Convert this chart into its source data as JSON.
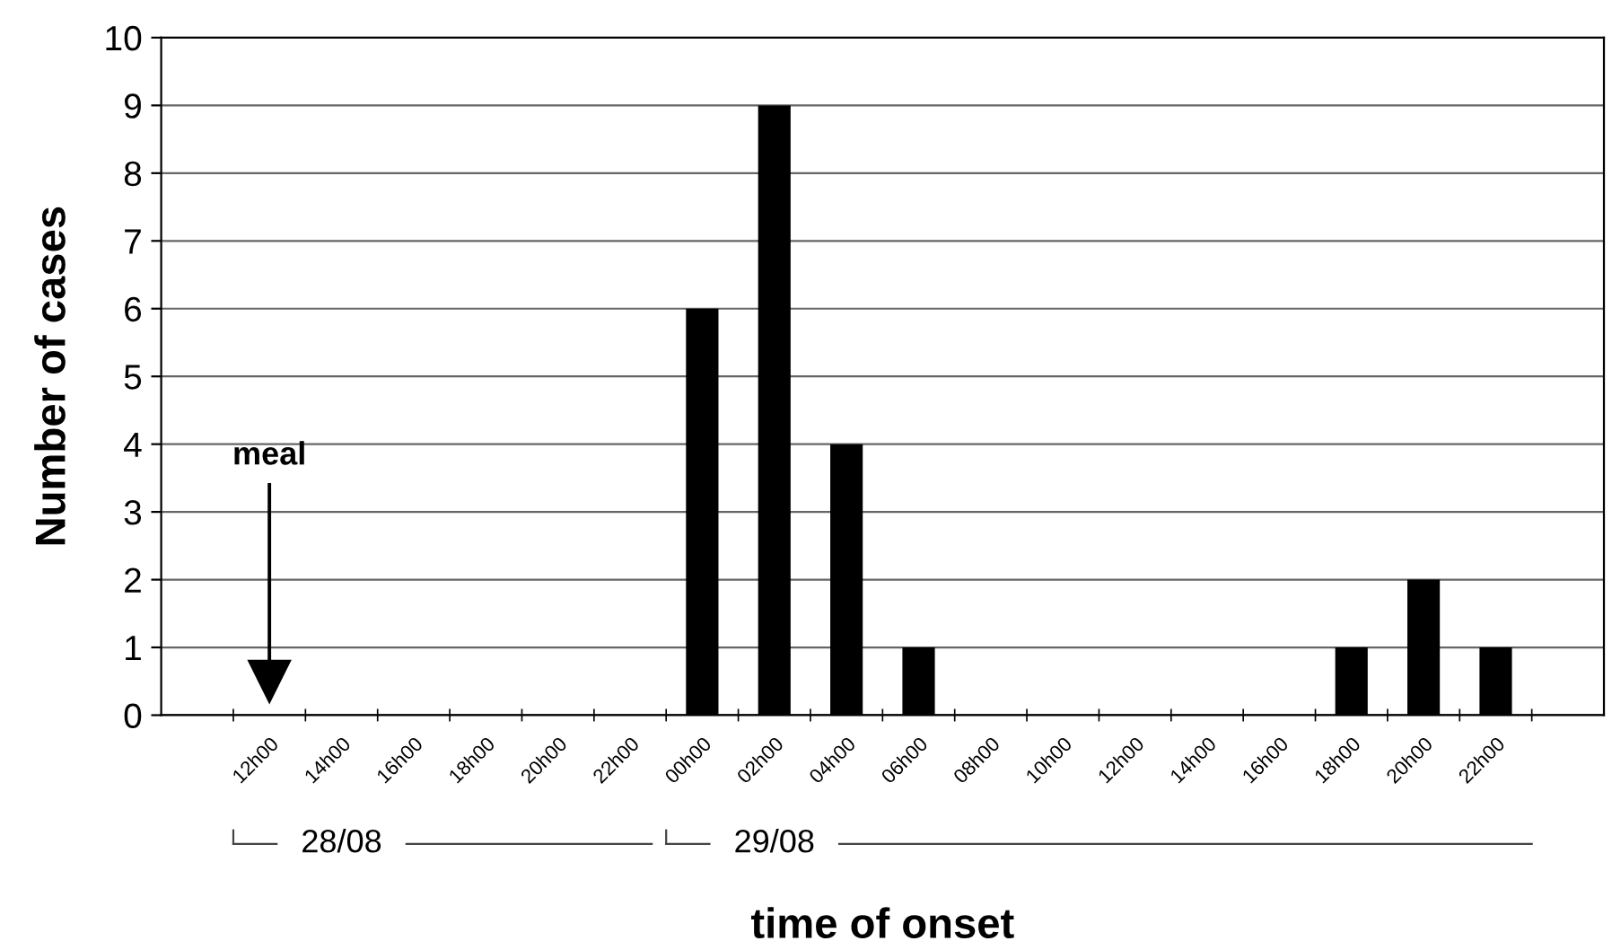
{
  "chart_data": {
    "type": "bar",
    "xlabel": "time of onset",
    "ylabel": "Number of cases",
    "categories": [
      null,
      "12h00",
      "14h00",
      "16h00",
      "18h00",
      "20h00",
      "22h00",
      "00h00",
      "02h00",
      "04h00",
      "06h00",
      "08h00",
      "10h00",
      "12h00",
      "14h00",
      "16h00",
      "18h00",
      "20h00",
      "22h00",
      null
    ],
    "values": [
      0,
      0,
      0,
      0,
      0,
      0,
      0,
      6,
      9,
      4,
      1,
      0,
      0,
      0,
      0,
      0,
      1,
      2,
      1,
      0
    ],
    "color": "#000000",
    "ylim": [
      0,
      10
    ],
    "yticks": [
      0,
      1,
      2,
      3,
      4,
      5,
      6,
      7,
      8,
      9,
      10
    ],
    "grid": "y",
    "annotations": [
      "meal",
      "28/08",
      "29/08"
    ]
  }
}
